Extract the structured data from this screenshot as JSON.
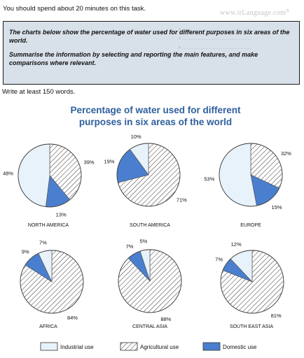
{
  "header": {
    "intro": "You should spend about 20 minutes on this task.",
    "watermark": "www.irLanguage.com"
  },
  "task": {
    "line1": "The charts below show the percentage of water used for different purposes in six areas of the world.",
    "line2": "Summarise the information by selecting and reporting the main features, and make comparisons where relevant."
  },
  "write_note": "Write at least 150 words.",
  "colors": {
    "industrial": "#e8f2fb",
    "domestic": "#4a7fcf",
    "hatch_bg": "#ffffff",
    "hatch_line": "#333333",
    "title": "#2e5f9d"
  },
  "chart_data": {
    "type": "pie",
    "title": "Percentage of water used for different purposes in six areas of the world",
    "legend": [
      "Industrial use",
      "Agricultural use",
      "Domestic use"
    ],
    "legend_position": "bottom",
    "series_names": [
      "Industrial use",
      "Agricultural use",
      "Domestic use"
    ],
    "charts": [
      {
        "region": "NORTH AMERICA",
        "industrial": 48,
        "agricultural": 39,
        "domestic": 13
      },
      {
        "region": "SOUTH AMERICA",
        "industrial": 10,
        "agricultural": 71,
        "domestic": 19
      },
      {
        "region": "EUROPE",
        "industrial": 53,
        "agricultural": 32,
        "domestic": 15
      },
      {
        "region": "AFRICA",
        "industrial": 7,
        "agricultural": 84,
        "domestic": 9
      },
      {
        "region": "CENTRAL ASIA",
        "industrial": 5,
        "agricultural": 88,
        "domestic": 7
      },
      {
        "region": "SOUTH EAST ASIA",
        "industrial": 12,
        "agricultural": 81,
        "domestic": 7
      }
    ]
  }
}
